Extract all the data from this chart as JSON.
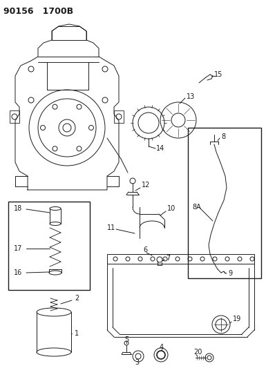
{
  "title": "90156   1700B",
  "bg": "#ffffff",
  "lc": "#1a1a1a",
  "lw": 0.7,
  "fs": 7.0
}
